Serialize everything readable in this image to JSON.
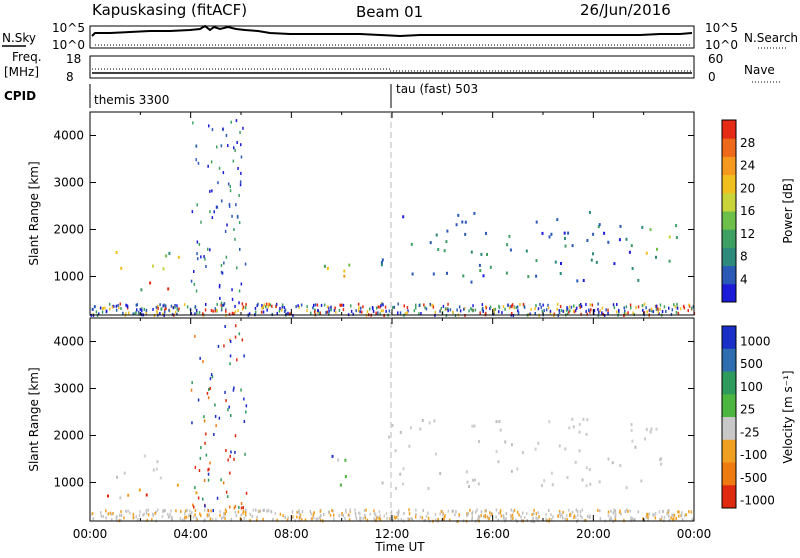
{
  "header": {
    "station": "Kapuskasing (fitACF)",
    "beam": "Beam 01",
    "date": "26/Jun/2016"
  },
  "noise_panel": {
    "left_label": "N.Sky",
    "right_label": "N.Search",
    "left_ticks": [
      "10^5",
      "10^0"
    ],
    "right_ticks": [
      "10^5",
      "10^0"
    ]
  },
  "freq_panel": {
    "left_label": "Freq.",
    "left_unit": "[MHz]",
    "right_label": "Nave",
    "left_ticks": [
      "18",
      "8"
    ],
    "right_ticks": [
      "60",
      "0"
    ]
  },
  "cpid_panel": {
    "label": "CPID",
    "mode1": "themis 3300",
    "mode2": "tau (fast) 503"
  },
  "time_axis": {
    "label": "Time UT",
    "ticks": [
      "00:00",
      "04:00",
      "08:00",
      "12:00",
      "16:00",
      "20:00",
      "00:00"
    ]
  },
  "chart_data": [
    {
      "type": "heatmap",
      "title": "Power",
      "ylabel": "Slant Range [km]",
      "xlabel": "Time UT",
      "ylim": [
        180,
        4500
      ],
      "y_ticks": [
        "1000",
        "2000",
        "3000",
        "4000"
      ],
      "colorbar": {
        "label": "Power [dB]",
        "ticks": [
          "4",
          "8",
          "12",
          "16",
          "20",
          "24",
          "28"
        ],
        "colors": [
          "#1c1cd8",
          "#2a59b6",
          "#2e8a7a",
          "#3fa064",
          "#6cc04a",
          "#c8d43a",
          "#f0c020",
          "#f59a1e",
          "#ee6a1a",
          "#e52a15"
        ]
      },
      "regions": [
        {
          "t": [
            0.5,
            3.5
          ],
          "r": [
            1100,
            1600
          ],
          "level": "mid"
        },
        {
          "t": [
            1.5,
            3.3
          ],
          "r": [
            600,
            1000
          ],
          "level": "high"
        },
        {
          "t": [
            9.0,
            10.3
          ],
          "r": [
            900,
            1700
          ],
          "level": "high"
        },
        {
          "t": [
            11.5,
            22.0
          ],
          "r": [
            900,
            2400
          ],
          "level": "low"
        },
        {
          "t": [
            22.0,
            24.0
          ],
          "r": [
            1300,
            2200
          ],
          "level": "mid"
        }
      ]
    },
    {
      "type": "heatmap",
      "title": "Velocity",
      "ylabel": "Slant Range [km]",
      "xlabel": "Time UT",
      "ylim": [
        180,
        4500
      ],
      "y_ticks": [
        "1000",
        "2000",
        "3000",
        "4000"
      ],
      "colorbar": {
        "label": "Velocity [m s^-1]",
        "ticks": [
          "1000",
          "500",
          "100",
          "25",
          "-25",
          "-100",
          "-500",
          "-1000"
        ],
        "colors": [
          "#1a2fc8",
          "#2d6db0",
          "#2e9a5c",
          "#4cb640",
          "#c8c8c8",
          "#f0a020",
          "#ee7a12",
          "#e02a10"
        ]
      },
      "regions": [
        {
          "t": [
            0.5,
            3.5
          ],
          "r": [
            1100,
            1600
          ],
          "level": "ground"
        },
        {
          "t": [
            0.5,
            4.2
          ],
          "r": [
            600,
            1000
          ],
          "level": "away"
        },
        {
          "t": [
            9.0,
            10.5
          ],
          "r": [
            900,
            1700
          ],
          "level": "toward"
        },
        {
          "t": [
            11.5,
            22.0
          ],
          "r": [
            900,
            2400
          ],
          "level": "ground"
        },
        {
          "t": [
            22.0,
            24.0
          ],
          "r": [
            1300,
            2200
          ],
          "level": "ground"
        }
      ]
    }
  ]
}
